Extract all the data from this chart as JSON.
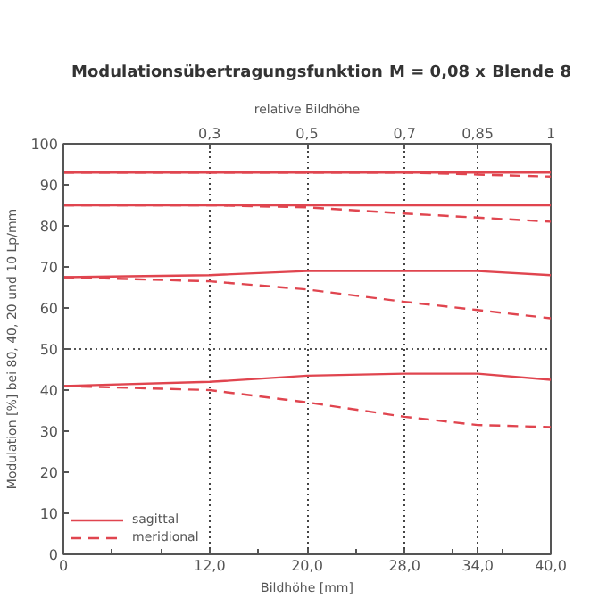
{
  "chart_data": {
    "type": "line",
    "title": "Modulationsübertragungsfunktion",
    "annotations": [
      "M = 0,08 x",
      "Blende 8"
    ],
    "xlabel": "Bildhöhe [mm]",
    "ylabel": "Modulation [%] bei 80, 40, 20 und 10 Lp/mm",
    "x2label": "relative Bildhöhe",
    "x": [
      0,
      12,
      20,
      28,
      34,
      40
    ],
    "series": [
      {
        "name": "sagittal",
        "color": "#e0454f",
        "line_style": "solid",
        "values": [
          93,
          93,
          93,
          93,
          93,
          93
        ]
      },
      {
        "color": "#e0454f",
        "line_style": "solid",
        "values": [
          85,
          85,
          85,
          85,
          85,
          85
        ]
      },
      {
        "color": "#e0454f",
        "line_style": "solid",
        "values": [
          67.5,
          68,
          69,
          69,
          69,
          68
        ]
      },
      {
        "color": "#e0454f",
        "line_style": "solid",
        "values": [
          41,
          42,
          43.5,
          44,
          44,
          42.5
        ]
      },
      {
        "name": "meridional",
        "color": "#e0454f",
        "line_style": "dashed",
        "values": [
          93,
          93,
          93,
          93,
          92.5,
          92
        ]
      },
      {
        "color": "#e0454f",
        "line_style": "dashed",
        "values": [
          85,
          85,
          84.5,
          83,
          82,
          81
        ]
      },
      {
        "color": "#e0454f",
        "line_style": "dashed",
        "values": [
          67.5,
          66.5,
          64.5,
          61.5,
          59.5,
          57.5
        ]
      },
      {
        "color": "#e0454f",
        "line_style": "dashed",
        "values": [
          41,
          40,
          37,
          33.5,
          31.5,
          31
        ]
      }
    ],
    "xlim": [
      0,
      40
    ],
    "xticks": [
      0,
      {
        "value": 4,
        "label": null
      },
      {
        "value": 8,
        "label": null
      },
      {
        "value": 12,
        "label": "12,0"
      },
      {
        "value": 16,
        "label": null
      },
      {
        "value": 20,
        "label": "20,0"
      },
      {
        "value": 24,
        "label": null
      },
      {
        "value": 28,
        "label": "28,0"
      },
      {
        "value": 32,
        "label": null
      },
      {
        "value": 34,
        "label": "34,0"
      },
      {
        "value": 36,
        "label": null
      },
      {
        "value": 40,
        "label": "40,0"
      }
    ],
    "x2lim": [
      0,
      1
    ],
    "x2ticks": [
      {
        "value": 0.3,
        "label": "0,3"
      },
      {
        "value": 0.5,
        "label": "0,5"
      },
      {
        "value": 0.7,
        "label": "0,7"
      },
      {
        "value": 0.85,
        "label": "0,85"
      },
      1
    ],
    "ylim": [
      0,
      100
    ],
    "yticks": [
      0,
      10,
      20,
      30,
      40,
      50,
      60,
      70,
      80,
      90,
      100
    ],
    "grid": "x",
    "ref_lines": [
      {
        "axis": "y",
        "value": 50,
        "line_style": "dotted",
        "color": "#555555"
      }
    ],
    "legend": "bottom left",
    "marker": "none"
  }
}
